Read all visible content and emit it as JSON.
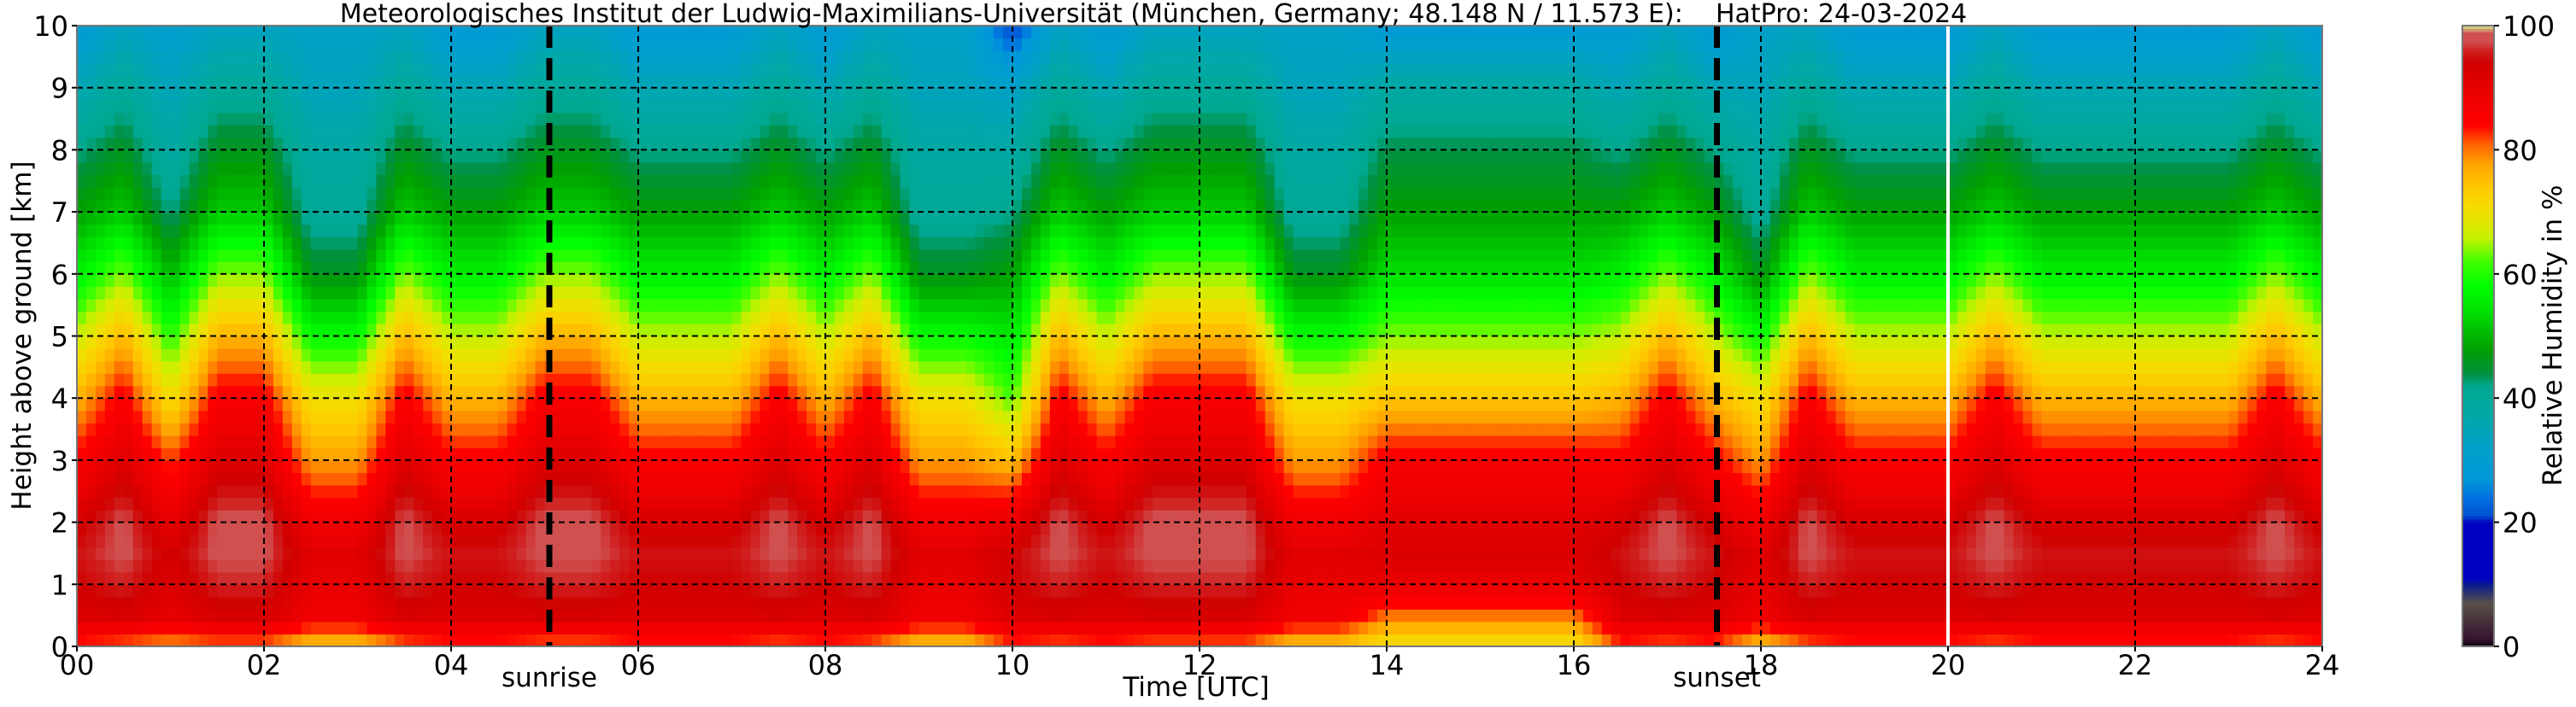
{
  "chart_data": {
    "type": "heatmap",
    "title": "Meteorologisches Institut der Ludwig-Maximilians-Universität (München, Germany; 48.148 N / 11.573 E):    HatPro: 24-03-2024",
    "xlabel": "Time [UTC]",
    "ylabel": "Height above ground [km]",
    "colorbar_label": "Relative Humidity in %",
    "xlim": [
      0,
      24
    ],
    "ylim": [
      0,
      10
    ],
    "clim": [
      0,
      100
    ],
    "grid": true,
    "x_ticks": [
      "00",
      "02",
      "04",
      "06",
      "08",
      "10",
      "12",
      "14",
      "16",
      "18",
      "20",
      "22",
      "24"
    ],
    "y_ticks": [
      "0",
      "1",
      "2",
      "3",
      "4",
      "5",
      "6",
      "7",
      "8",
      "9",
      "10"
    ],
    "colorbar_ticks": [
      "0",
      "20",
      "40",
      "60",
      "80",
      "100"
    ],
    "annotations": [
      {
        "label": "sunrise",
        "time_utc": 5.05
      },
      {
        "label": "sunset",
        "time_utc": 17.53
      }
    ],
    "data_gap_time_utc": [
      20.0
    ],
    "colormap": [
      [
        0,
        "#000000"
      ],
      [
        1,
        "#351030"
      ],
      [
        7,
        "#5a5048"
      ],
      [
        10,
        "#0a1a90"
      ],
      [
        11,
        "#0000c0"
      ],
      [
        20,
        "#0000c0"
      ],
      [
        21,
        "#0050d0"
      ],
      [
        24,
        "#0070e0"
      ],
      [
        27,
        "#0098d8"
      ],
      [
        32,
        "#00a0c8"
      ],
      [
        37,
        "#00a8a8"
      ],
      [
        42,
        "#00a890"
      ],
      [
        44,
        "#009040"
      ],
      [
        48,
        "#00a000"
      ],
      [
        54,
        "#00e000"
      ],
      [
        58,
        "#00ff00"
      ],
      [
        62,
        "#40ff00"
      ],
      [
        66,
        "#c8f000"
      ],
      [
        70,
        "#f0e000"
      ],
      [
        74,
        "#ffc800"
      ],
      [
        78,
        "#ffa000"
      ],
      [
        81,
        "#ff6000"
      ],
      [
        84,
        "#ff0000"
      ],
      [
        90,
        "#e80000"
      ],
      [
        94,
        "#d00000"
      ],
      [
        96,
        "#d02020"
      ],
      [
        97.5,
        "#d05050"
      ],
      [
        99,
        "#d05050"
      ],
      [
        99.5,
        "#d0c880"
      ],
      [
        100,
        "#d0c880"
      ]
    ],
    "x": [
      0,
      0.5,
      1,
      1.5,
      2,
      2.5,
      3,
      3.5,
      4,
      4.5,
      5,
      5.5,
      6,
      6.5,
      7,
      7.5,
      8,
      8.5,
      9,
      9.5,
      10,
      10.5,
      11,
      11.5,
      12,
      12.5,
      13,
      13.5,
      14,
      14.5,
      15,
      15.5,
      16,
      16.5,
      17,
      17.5,
      18,
      18.5,
      19,
      19.5,
      20,
      20.5,
      21,
      21.5,
      22,
      22.5,
      23,
      23.5,
      24
    ],
    "y": [
      0,
      0.5,
      1,
      1.5,
      2,
      3,
      4,
      5,
      6,
      7,
      8,
      9,
      10
    ],
    "z": [
      [
        82,
        92,
        94,
        95,
        93,
        85,
        76,
        66,
        56,
        48,
        42,
        35,
        28
      ],
      [
        80,
        93,
        96,
        98,
        98,
        92,
        86,
        76,
        64,
        52,
        46,
        40,
        33
      ],
      [
        78,
        90,
        92,
        93,
        90,
        82,
        70,
        60,
        50,
        42,
        38,
        34,
        30
      ],
      [
        80,
        93,
        96,
        98,
        98,
        92,
        86,
        76,
        64,
        52,
        46,
        40,
        33
      ],
      [
        80,
        93,
        96,
        98,
        98,
        92,
        86,
        76,
        64,
        52,
        46,
        40,
        33
      ],
      [
        74,
        88,
        90,
        91,
        88,
        78,
        70,
        58,
        46,
        40,
        38,
        34,
        32
      ],
      [
        74,
        88,
        90,
        91,
        88,
        78,
        70,
        58,
        46,
        40,
        38,
        34,
        32
      ],
      [
        80,
        93,
        96,
        98,
        98,
        92,
        86,
        76,
        64,
        52,
        46,
        40,
        33
      ],
      [
        82,
        92,
        94,
        95,
        93,
        85,
        76,
        66,
        56,
        48,
        42,
        35,
        28
      ],
      [
        82,
        92,
        94,
        95,
        93,
        85,
        76,
        66,
        56,
        48,
        42,
        35,
        28
      ],
      [
        80,
        93,
        96,
        98,
        98,
        92,
        86,
        76,
        64,
        52,
        46,
        40,
        33
      ],
      [
        80,
        93,
        96,
        98,
        98,
        92,
        86,
        76,
        64,
        52,
        46,
        40,
        33
      ],
      [
        82,
        92,
        94,
        95,
        93,
        85,
        76,
        66,
        56,
        48,
        42,
        35,
        28
      ],
      [
        82,
        92,
        94,
        95,
        93,
        85,
        76,
        66,
        56,
        48,
        42,
        35,
        28
      ],
      [
        82,
        92,
        94,
        95,
        93,
        85,
        76,
        66,
        56,
        48,
        42,
        35,
        28
      ],
      [
        80,
        93,
        96,
        98,
        98,
        92,
        86,
        76,
        64,
        52,
        46,
        40,
        33
      ],
      [
        82,
        92,
        94,
        95,
        93,
        85,
        76,
        66,
        56,
        48,
        42,
        35,
        28
      ],
      [
        80,
        93,
        96,
        98,
        98,
        92,
        86,
        76,
        64,
        52,
        46,
        40,
        33
      ],
      [
        74,
        88,
        90,
        91,
        88,
        78,
        70,
        58,
        46,
        40,
        38,
        34,
        32
      ],
      [
        74,
        88,
        90,
        91,
        88,
        78,
        70,
        58,
        46,
        40,
        38,
        34,
        32
      ],
      [
        82,
        92,
        94,
        94,
        90,
        75,
        62,
        55,
        48,
        42,
        38,
        32,
        20
      ],
      [
        80,
        93,
        96,
        98,
        98,
        92,
        86,
        76,
        64,
        52,
        46,
        40,
        33
      ],
      [
        82,
        92,
        94,
        95,
        93,
        85,
        76,
        66,
        56,
        48,
        42,
        35,
        28
      ],
      [
        80,
        93,
        96,
        98,
        98,
        92,
        86,
        76,
        64,
        52,
        46,
        40,
        33
      ],
      [
        80,
        93,
        96,
        98,
        98,
        92,
        86,
        76,
        64,
        52,
        46,
        40,
        33
      ],
      [
        80,
        93,
        96,
        98,
        98,
        92,
        86,
        76,
        64,
        52,
        46,
        40,
        33
      ],
      [
        74,
        88,
        90,
        91,
        88,
        78,
        70,
        58,
        46,
        40,
        38,
        34,
        32
      ],
      [
        74,
        88,
        90,
        91,
        88,
        78,
        70,
        58,
        46,
        40,
        38,
        34,
        32
      ],
      [
        70,
        80,
        90,
        92,
        91,
        86,
        74,
        64,
        54,
        48,
        44,
        38,
        28
      ],
      [
        70,
        80,
        90,
        92,
        91,
        86,
        74,
        64,
        54,
        48,
        44,
        38,
        28
      ],
      [
        70,
        80,
        90,
        92,
        91,
        86,
        74,
        64,
        54,
        48,
        44,
        38,
        28
      ],
      [
        70,
        80,
        90,
        92,
        91,
        86,
        74,
        64,
        54,
        48,
        44,
        38,
        28
      ],
      [
        70,
        80,
        90,
        92,
        91,
        86,
        74,
        64,
        54,
        48,
        44,
        38,
        28
      ],
      [
        82,
        92,
        94,
        95,
        93,
        85,
        76,
        66,
        56,
        48,
        42,
        35,
        28
      ],
      [
        80,
        93,
        96,
        98,
        98,
        92,
        86,
        76,
        64,
        52,
        46,
        40,
        33
      ],
      [
        82,
        92,
        94,
        95,
        93,
        85,
        76,
        66,
        56,
        48,
        42,
        35,
        28
      ],
      [
        74,
        88,
        90,
        91,
        88,
        78,
        70,
        58,
        46,
        40,
        38,
        34,
        32
      ],
      [
        80,
        93,
        96,
        98,
        98,
        92,
        86,
        76,
        64,
        52,
        46,
        40,
        33
      ],
      [
        82,
        92,
        94,
        95,
        93,
        85,
        76,
        66,
        56,
        48,
        42,
        35,
        28
      ],
      [
        82,
        92,
        94,
        95,
        93,
        85,
        76,
        66,
        56,
        48,
        42,
        35,
        28
      ],
      [
        82,
        92,
        94,
        95,
        93,
        85,
        76,
        66,
        56,
        48,
        42,
        35,
        28
      ],
      [
        80,
        93,
        96,
        98,
        98,
        92,
        86,
        76,
        64,
        52,
        46,
        40,
        33
      ],
      [
        82,
        92,
        94,
        95,
        93,
        85,
        76,
        66,
        56,
        48,
        42,
        35,
        28
      ],
      [
        82,
        92,
        94,
        95,
        93,
        85,
        76,
        66,
        56,
        48,
        42,
        35,
        28
      ],
      [
        82,
        92,
        94,
        95,
        93,
        85,
        76,
        66,
        56,
        48,
        42,
        35,
        28
      ],
      [
        82,
        92,
        94,
        95,
        93,
        85,
        76,
        66,
        56,
        48,
        42,
        35,
        28
      ],
      [
        82,
        92,
        94,
        95,
        93,
        85,
        76,
        66,
        56,
        48,
        42,
        35,
        28
      ],
      [
        80,
        93,
        96,
        98,
        98,
        92,
        86,
        76,
        64,
        52,
        46,
        40,
        33
      ],
      [
        82,
        92,
        94,
        95,
        93,
        85,
        76,
        66,
        56,
        48,
        42,
        35,
        28
      ]
    ]
  }
}
